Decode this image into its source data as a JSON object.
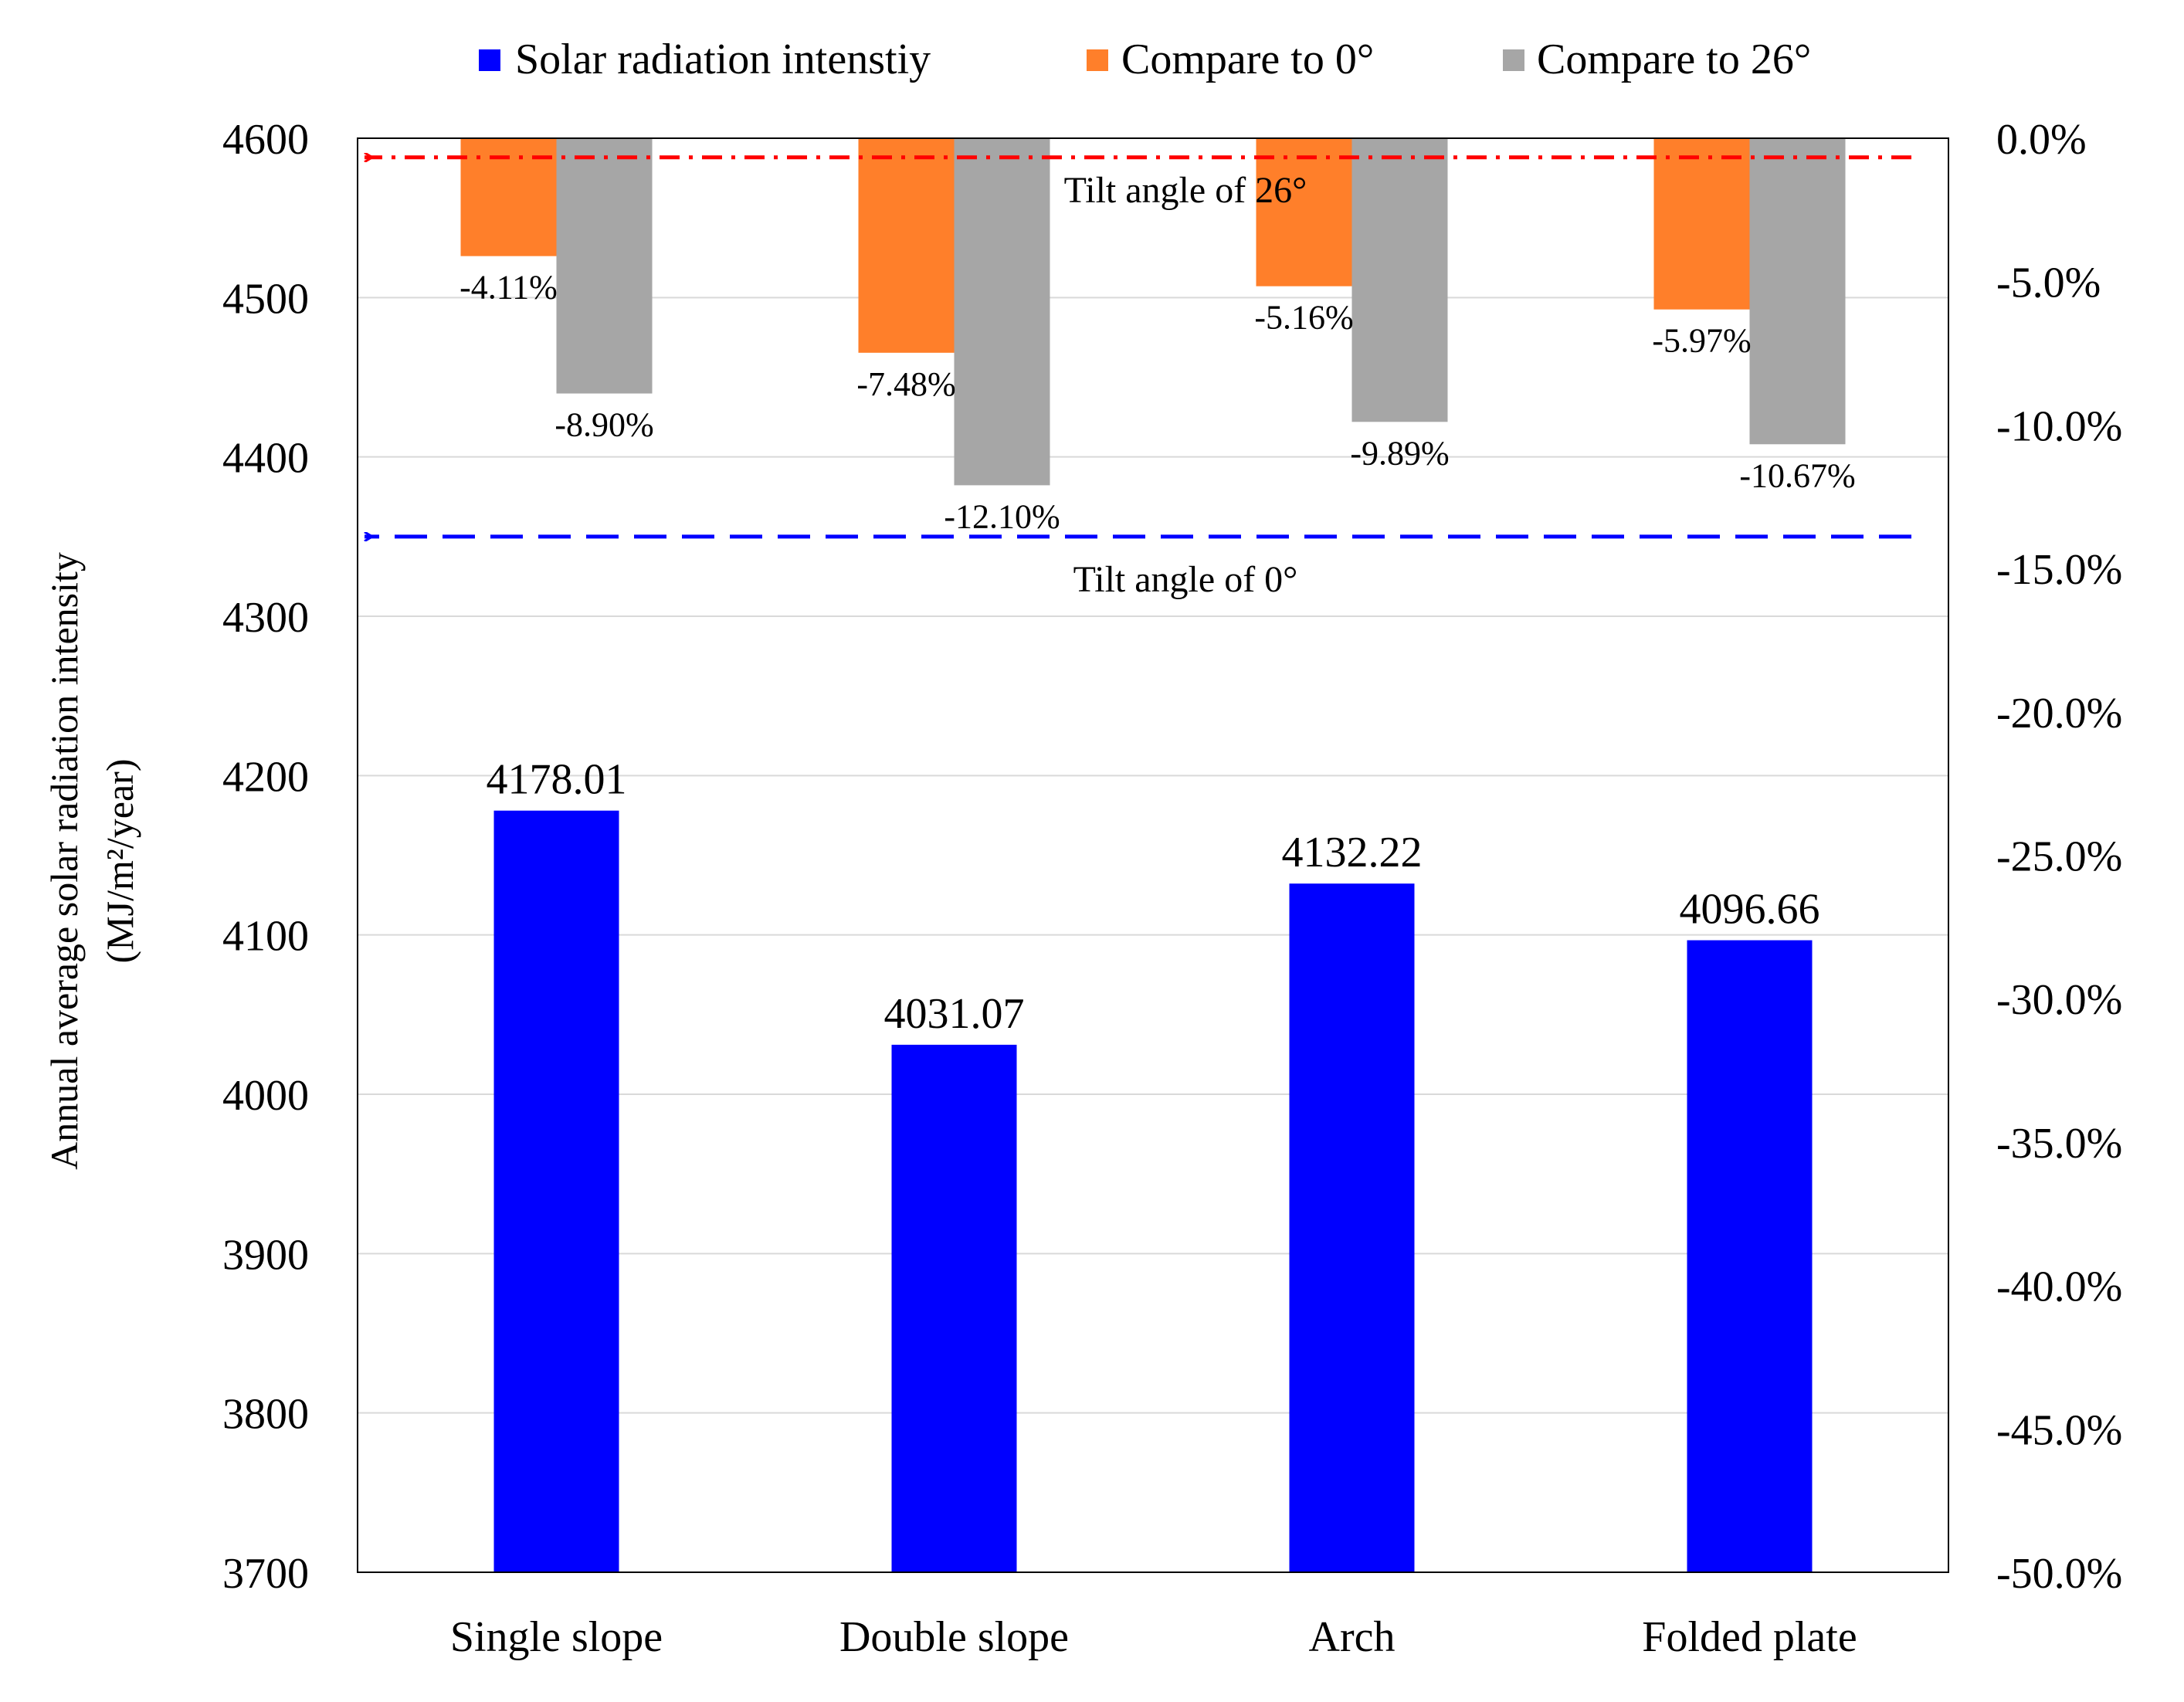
{
  "colors": {
    "solar": "#0000ff",
    "cmp0": "#ff7f2a",
    "cmp26": "#a6a6a6",
    "ref26_line": "#ff0000",
    "ref0_line": "#0000ff",
    "grid": "#d9d9d9",
    "axis": "#000000"
  },
  "chart_data": {
    "type": "bar",
    "categories": [
      "Single slope",
      "Double slope",
      "Arch",
      "Folded plate"
    ],
    "series": [
      {
        "name": "Solar radiation intenstiy",
        "axis": "left",
        "values": [
          4178.01,
          4031.07,
          4132.22,
          4096.66
        ],
        "labels": [
          "4178.01",
          "4031.07",
          "4132.22",
          "4096.66"
        ]
      },
      {
        "name": "Compare to 0°",
        "axis": "right",
        "values": [
          -4.11,
          -7.48,
          -5.16,
          -5.97
        ],
        "labels": [
          "-4.11%",
          "-7.48%",
          "-5.16%",
          "-5.97%"
        ]
      },
      {
        "name": "Compare to 26°",
        "axis": "right",
        "values": [
          -8.9,
          -12.1,
          -9.89,
          -10.67
        ],
        "labels": [
          "-8.90%",
          "-12.10%",
          "-9.89%",
          "-10.67%"
        ]
      }
    ],
    "ylabel": "Annual  average solar radiation intensity",
    "ylabel_units": "(MJ/m²/year)",
    "ylim": [
      3700,
      4600
    ],
    "yticks": [
      4600,
      4500,
      4400,
      4300,
      4200,
      4100,
      4000,
      3900,
      3800,
      3700
    ],
    "y2lim": [
      -50,
      0
    ],
    "y2ticks": [
      0,
      -5,
      -10,
      -15,
      -20,
      -25,
      -30,
      -35,
      -40,
      -45,
      -50
    ],
    "y2tick_labels": [
      "0.0%",
      "-5.0%",
      "-10.0%",
      "-15.0%",
      "-20.0%",
      "-25.0%",
      "-30.0%",
      "-35.0%",
      "-40.0%",
      "-45.0%",
      "-50.0%"
    ],
    "reference_lines": [
      {
        "label": "Tilt angle of 26°",
        "value": 4588,
        "style": "dash-dot",
        "color_key": "ref26_line"
      },
      {
        "label": "Tilt angle of 0°",
        "value": 4350,
        "style": "dashed",
        "color_key": "ref0_line"
      }
    ],
    "legend_position": "top",
    "grid": true
  }
}
